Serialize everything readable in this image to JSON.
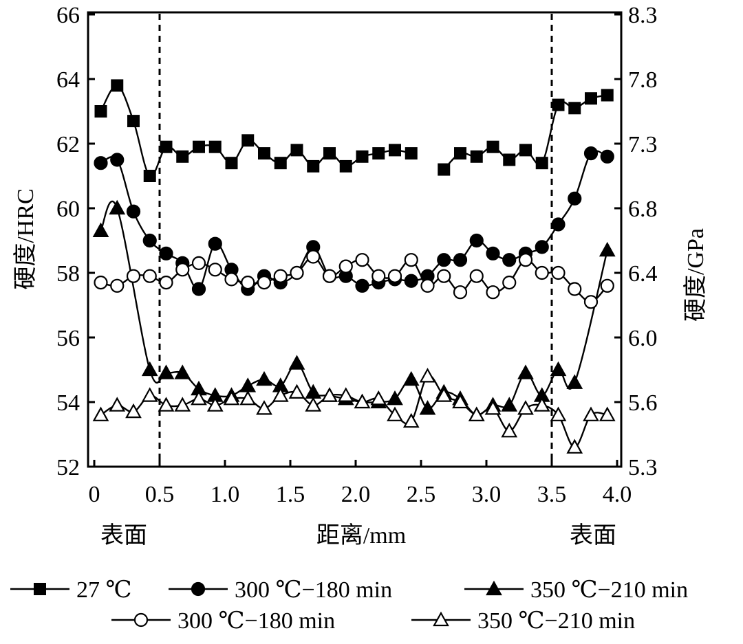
{
  "chart_data": {
    "type": "line",
    "title": "",
    "xlabel": "距离/mm",
    "ylabel": "硬度/HRC",
    "ylabel_right": "硬度/GPa",
    "x_annotations": {
      "left": "表面",
      "right": "表面"
    },
    "xlim": [
      0,
      4.0
    ],
    "ylim": [
      52,
      66
    ],
    "xticks": [
      0,
      0.5,
      1.0,
      1.5,
      2.0,
      2.5,
      3.0,
      3.5,
      4.0
    ],
    "xtick_labels": [
      "0",
      "0.5",
      "1.0",
      "1.5",
      "2.0",
      "2.5",
      "3.0",
      "3.5",
      "4.0"
    ],
    "yticks": [
      52,
      54,
      56,
      58,
      60,
      62,
      64,
      66
    ],
    "ytick_labels": [
      "52",
      "54",
      "56",
      "58",
      "60",
      "62",
      "64",
      "66"
    ],
    "yticks_right_labels": [
      "5.3",
      "5.6",
      "6.0",
      "6.4",
      "6.8",
      "7.3",
      "7.8",
      "8.3"
    ],
    "reference_lines_x": [
      0.5,
      3.5
    ],
    "grid": false,
    "legend_position": "bottom",
    "x": [
      0.05,
      0.175,
      0.3,
      0.425,
      0.55,
      0.675,
      0.8,
      0.925,
      1.05,
      1.175,
      1.3,
      1.425,
      1.55,
      1.675,
      1.8,
      1.925,
      2.05,
      2.175,
      2.3,
      2.425,
      2.55,
      2.675,
      2.8,
      2.925,
      3.05,
      3.175,
      3.3,
      3.425,
      3.55,
      3.675,
      3.8,
      3.925
    ],
    "series": [
      {
        "name": "27 ℃",
        "marker": "square-filled",
        "values": [
          63.0,
          63.8,
          62.7,
          61.0,
          61.9,
          61.6,
          61.9,
          61.9,
          61.4,
          62.1,
          61.7,
          61.4,
          61.8,
          61.3,
          61.7,
          61.3,
          61.6,
          61.7,
          61.8,
          61.7,
          null,
          61.2,
          61.7,
          61.6,
          61.9,
          61.5,
          61.8,
          61.4,
          63.2,
          63.1,
          63.4,
          63.5
        ]
      },
      {
        "name": "300 ℃−180 min",
        "marker": "circle-filled",
        "values": [
          61.4,
          61.5,
          59.9,
          59.0,
          58.6,
          58.3,
          57.5,
          58.9,
          58.1,
          57.5,
          57.9,
          57.7,
          58.0,
          58.8,
          57.9,
          57.9,
          57.6,
          57.7,
          57.8,
          57.75,
          57.9,
          58.4,
          58.4,
          59.0,
          58.6,
          58.4,
          58.6,
          58.8,
          59.5,
          60.3,
          61.7,
          61.6
        ]
      },
      {
        "name": "350 ℃−210 min",
        "marker": "triangle-filled",
        "values": [
          59.3,
          60.0,
          null,
          55.0,
          54.9,
          54.9,
          54.4,
          54.2,
          54.2,
          54.5,
          54.7,
          54.5,
          55.2,
          54.3,
          54.2,
          54.1,
          54.0,
          54.0,
          54.1,
          54.7,
          53.8,
          54.3,
          54.1,
          53.6,
          53.9,
          53.9,
          54.9,
          54.2,
          55.0,
          54.6,
          null,
          58.7
        ]
      },
      {
        "name": "300 ℃−180 min",
        "marker": "circle-open",
        "values": [
          57.7,
          57.6,
          57.9,
          57.9,
          57.7,
          58.1,
          58.3,
          58.1,
          57.8,
          57.7,
          57.7,
          57.9,
          58.0,
          58.5,
          57.9,
          58.2,
          58.4,
          57.9,
          57.9,
          58.4,
          57.6,
          57.9,
          57.4,
          57.9,
          57.4,
          57.7,
          58.4,
          58.0,
          58.0,
          57.5,
          57.1,
          57.6
        ]
      },
      {
        "name": "350 ℃−210 min",
        "marker": "triangle-open",
        "values": [
          53.6,
          53.9,
          53.7,
          54.2,
          53.9,
          53.9,
          54.1,
          53.9,
          54.1,
          54.1,
          53.8,
          54.2,
          54.3,
          53.9,
          54.2,
          54.2,
          54.0,
          54.1,
          53.6,
          53.4,
          54.8,
          54.2,
          54.0,
          53.6,
          53.8,
          53.1,
          53.8,
          53.9,
          53.6,
          52.6,
          53.6,
          53.6
        ]
      }
    ],
    "colors": {
      "line": "#000000",
      "background": "#ffffff"
    }
  }
}
